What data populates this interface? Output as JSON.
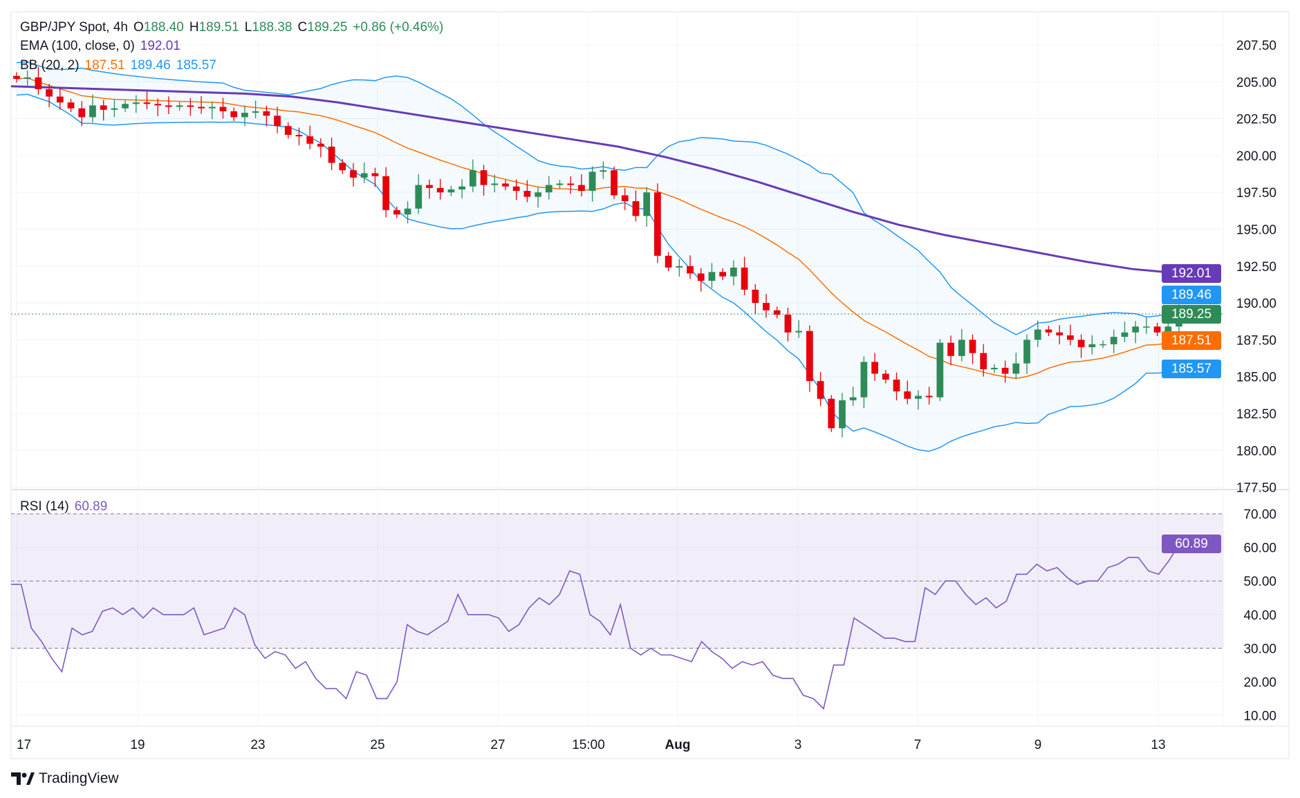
{
  "header": {
    "symbol": "GBP/JPY Spot, 4h",
    "o_label": "O",
    "o": "188.40",
    "h_label": "H",
    "h": "189.51",
    "l_label": "L",
    "l": "188.38",
    "c_label": "C",
    "c": "189.25",
    "change": "+0.86 (+0.46%)"
  },
  "ema_legend": {
    "label": "EMA (100, close, 0)",
    "value": "192.01"
  },
  "bb_legend": {
    "label": "BB (20, 2)",
    "basis": "187.51",
    "upper": "189.46",
    "lower": "185.57"
  },
  "rsi_legend": {
    "label": "RSI (14)",
    "value": "60.89"
  },
  "badges": {
    "ema": "192.01",
    "upper": "189.46",
    "close": "189.25",
    "basis": "187.51",
    "lower": "185.57",
    "rsi": "60.89"
  },
  "colors": {
    "up": "#2e8b57",
    "down": "#e8000b",
    "ema": "#673ab7",
    "bb_band": "#2196f3",
    "bb_basis": "#ff6d00",
    "rsi": "#7e57c2"
  },
  "branding": "TradingView",
  "chart_data": [
    {
      "type": "candlestick",
      "title": "GBP/JPY Spot, 4h",
      "price_ticks": [
        "207.50",
        "205.00",
        "202.50",
        "200.00",
        "197.50",
        "195.00",
        "192.50",
        "190.00",
        "187.50",
        "185.00",
        "182.50",
        "180.00",
        "177.50"
      ],
      "ylim": [
        177.5,
        207.5
      ],
      "x_ticks": [
        "17",
        "19",
        "23",
        "25",
        "27",
        "15:00",
        "Aug",
        "3",
        "7",
        "9",
        "13"
      ],
      "closes": [
        205.2,
        205.3,
        204.5,
        204.0,
        203.6,
        203.2,
        202.6,
        203.4,
        203.1,
        203.2,
        203.5,
        203.6,
        203.5,
        203.4,
        203.3,
        203.4,
        203.3,
        203.2,
        203.3,
        203.0,
        202.6,
        202.9,
        203.0,
        202.7,
        202.0,
        201.4,
        201.3,
        200.8,
        200.6,
        199.5,
        199.0,
        198.5,
        198.8,
        198.6,
        196.3,
        196.0,
        196.4,
        198.0,
        197.8,
        197.5,
        197.7,
        197.9,
        199.0,
        198.0,
        198.1,
        197.9,
        197.6,
        197.2,
        197.5,
        198.0,
        198.1,
        198.0,
        197.6,
        198.9,
        199.0,
        197.3,
        196.9,
        195.9,
        197.5,
        193.2,
        192.4,
        192.5,
        192.0,
        191.5,
        192.1,
        191.8,
        192.4,
        190.9,
        190.0,
        189.5,
        189.2,
        188.0,
        188.1,
        184.7,
        183.5,
        181.5,
        183.4,
        183.6,
        186.0,
        185.2,
        184.8,
        184.0,
        183.5,
        183.7,
        183.6,
        187.3,
        186.4,
        187.5,
        186.6,
        185.5,
        185.6,
        185.2,
        185.9,
        187.5,
        188.2,
        188.0,
        187.8,
        187.5,
        187.0,
        187.2,
        187.2,
        187.7,
        188.0,
        188.4,
        188.4,
        188.0,
        188.4,
        189.25
      ],
      "ema100": [
        204.7,
        204.6,
        204.5,
        204.4,
        204.3,
        204.2,
        204.0,
        203.6,
        203.1,
        202.6,
        202.1,
        201.6,
        201.1,
        200.6,
        199.9,
        199.1,
        198.2,
        197.2,
        196.2,
        195.3,
        194.6,
        194.0,
        193.4,
        192.8,
        192.3,
        192.01
      ],
      "bollinger": {
        "period": 20,
        "mult": 2,
        "last": {
          "basis": 187.51,
          "upper": 189.46,
          "lower": 185.57
        }
      }
    },
    {
      "type": "line",
      "title": "RSI (14)",
      "ylim": [
        5,
        75
      ],
      "y_ticks": [
        "70.00",
        "60.00",
        "50.00",
        "40.00",
        "30.00",
        "20.00",
        "10.00"
      ],
      "bands": [
        30,
        50,
        70
      ],
      "values": [
        49,
        49,
        36,
        32,
        27,
        23,
        36,
        34,
        35,
        41,
        42,
        40,
        42,
        39,
        42,
        40,
        40,
        40,
        42,
        34,
        35,
        36,
        42,
        40,
        31,
        27,
        29,
        28,
        24,
        26,
        21,
        18,
        18,
        15,
        23,
        22,
        15,
        15,
        20,
        37,
        35,
        34,
        36,
        38,
        46,
        40,
        40,
        40,
        39,
        35,
        37,
        42,
        45,
        43,
        46,
        53,
        52,
        40,
        38,
        34,
        43,
        30,
        28,
        30,
        28,
        28,
        27,
        26,
        32,
        29,
        27,
        24,
        26,
        25,
        26,
        22,
        21,
        21,
        16,
        15,
        12,
        25,
        25,
        39,
        37,
        35,
        33,
        33,
        32,
        32,
        48,
        46,
        50,
        50,
        46,
        43,
        45,
        42,
        44,
        52,
        52,
        55,
        53,
        54,
        51,
        49,
        50,
        50,
        54,
        55,
        57,
        57,
        53,
        52,
        56,
        60.89
      ]
    }
  ]
}
